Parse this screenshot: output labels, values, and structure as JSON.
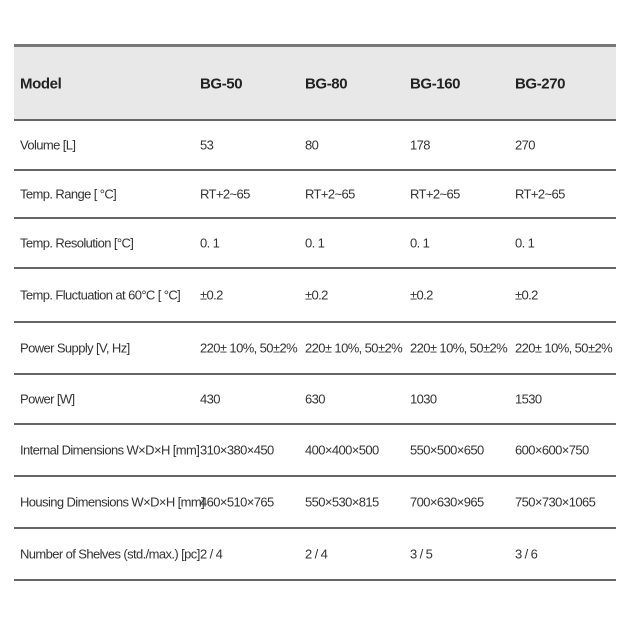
{
  "table": {
    "header": [
      "Model",
      "BG-50",
      "BG-80",
      "BG-160",
      "BG-270"
    ],
    "rows": [
      [
        "Volume [L]",
        "53",
        "80",
        "178",
        "270"
      ],
      [
        "Temp. Range [ °C]",
        "RT+2~65",
        "RT+2~65",
        "RT+2~65",
        "RT+2~65"
      ],
      [
        "Temp. Resolution [°C]",
        "0. 1",
        "0. 1",
        "0. 1",
        "0. 1"
      ],
      [
        "Temp. Fluctuation at 60°C [ °C]",
        "±0.2",
        "±0.2",
        "±0.2",
        "±0.2"
      ],
      [
        "Power Supply [V, Hz]",
        "220± 10%, 50±2%",
        "220± 10%, 50±2%",
        "220± 10%, 50±2%",
        "220± 10%, 50±2%"
      ],
      [
        "Power [W]",
        "430",
        "630",
        "1030",
        "1530"
      ],
      [
        "Internal Dimensions W×D×H [mm]",
        "310×380×450",
        "400×400×500",
        "550×500×650",
        "600×600×750"
      ],
      [
        "Housing Dimensions W×D×H [mm]",
        "460×510×765",
        "550×530×815",
        "700×630×965",
        "750×730×1065"
      ],
      [
        "Number of Shelves (std./max.) [pc]",
        "2 / 4",
        "2 / 4",
        "3 / 5",
        "3 / 6"
      ]
    ]
  }
}
